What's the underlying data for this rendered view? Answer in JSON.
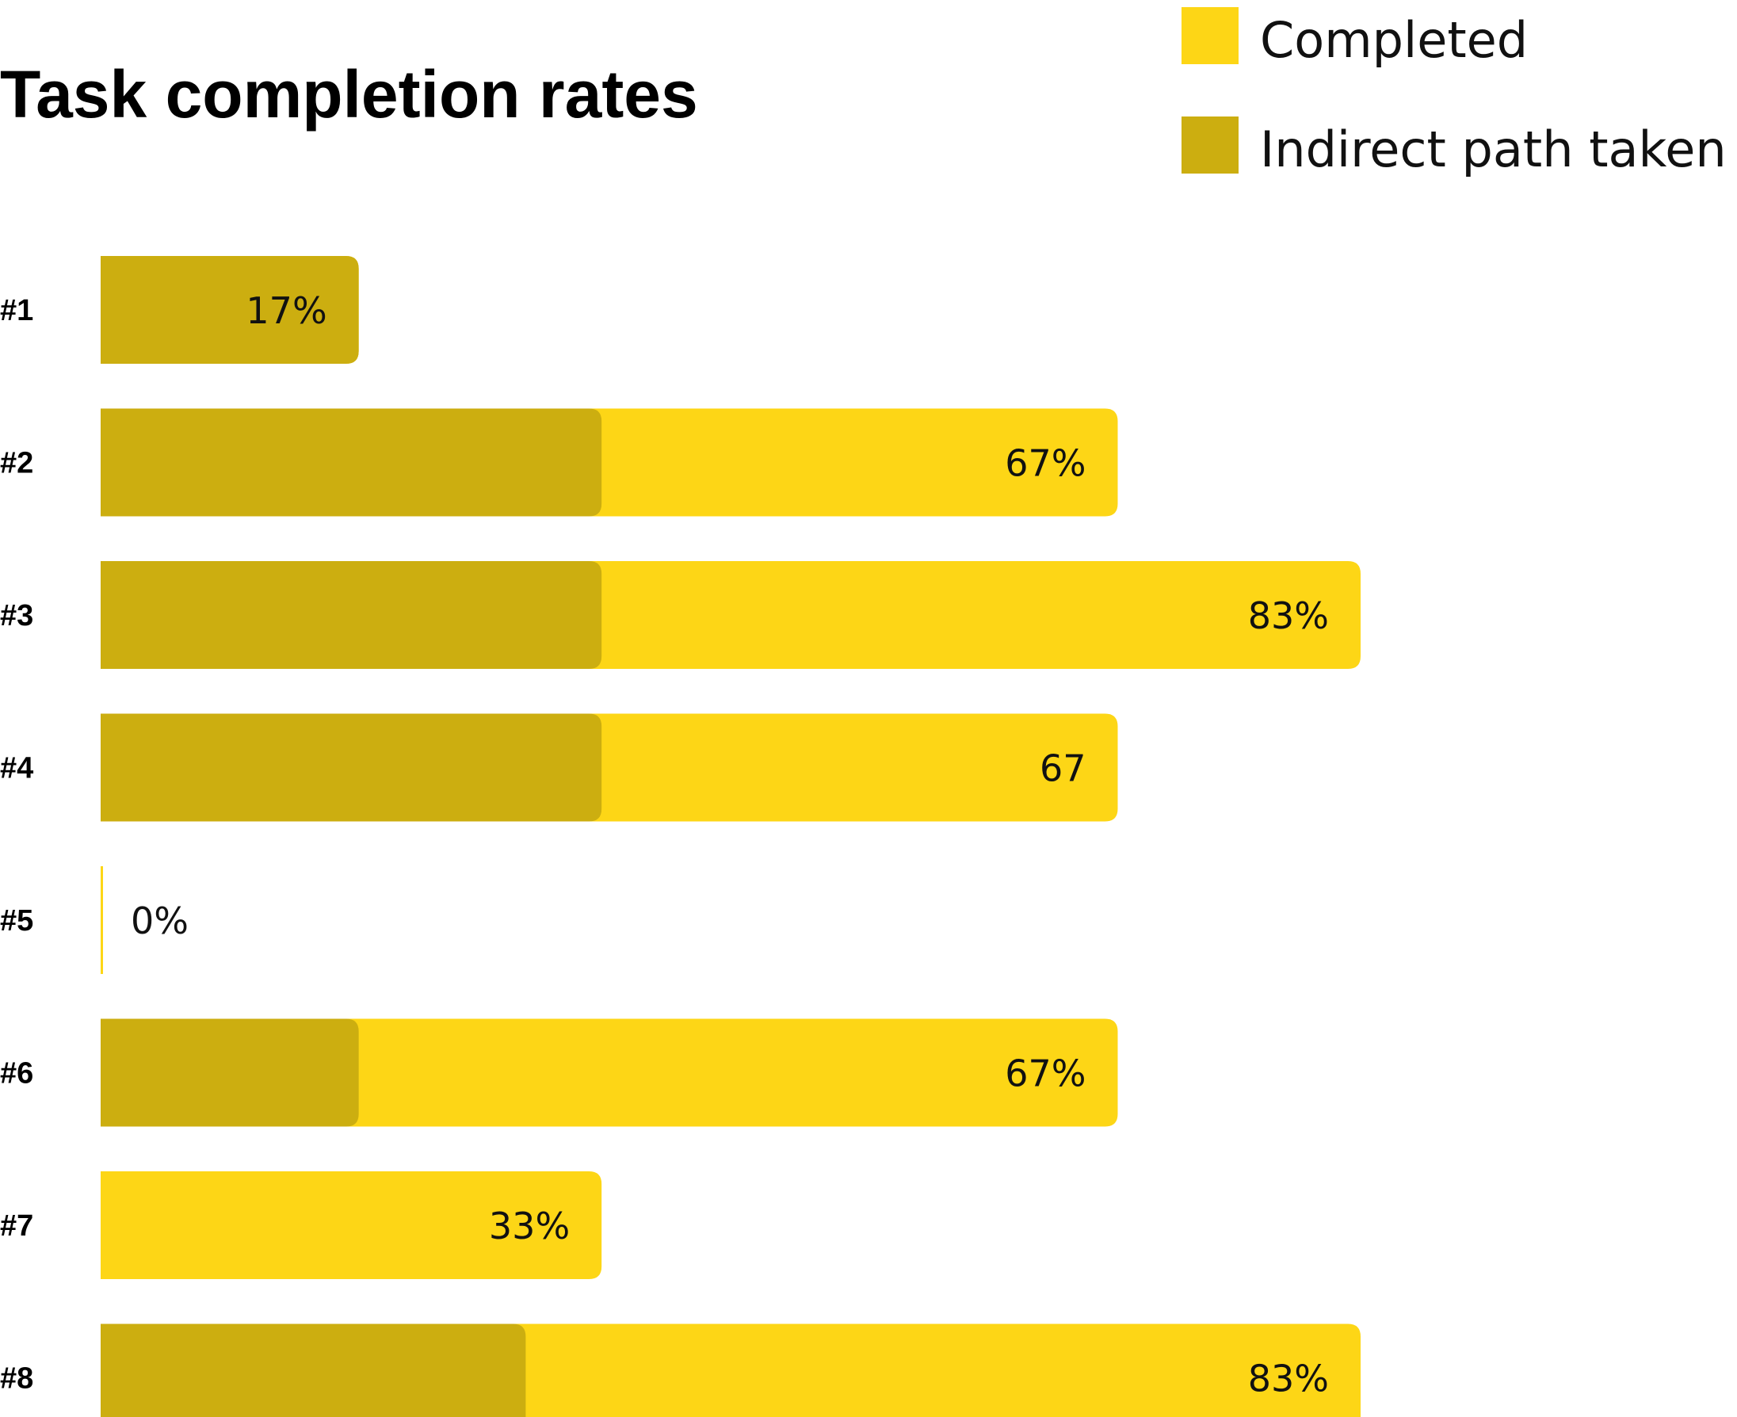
{
  "chart_data": {
    "type": "bar",
    "orientation": "horizontal",
    "title": "Task completion rates",
    "categories": [
      "#1",
      "#2",
      "#3",
      "#4",
      "#5",
      "#6",
      "#7",
      "#8"
    ],
    "series": [
      {
        "name": "Completed",
        "color": "#FDD616",
        "values": [
          17,
          67,
          83,
          67,
          0,
          67,
          33,
          83
        ]
      },
      {
        "name": "Indirect path taken",
        "color": "#CCAE10",
        "values": [
          17,
          33,
          33,
          33,
          0,
          17,
          0,
          28
        ]
      }
    ],
    "value_labels": [
      "17%",
      "67%",
      "83%",
      "67",
      "0%",
      "67%",
      "33%",
      "83%"
    ],
    "xlim": [
      0,
      100
    ],
    "grid": false,
    "legend_position": "top-right"
  }
}
